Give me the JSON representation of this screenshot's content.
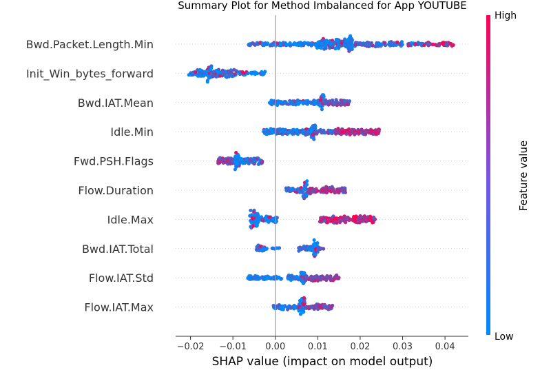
{
  "chart_data": {
    "type": "scatter",
    "title": "Summary Plot for Method Imbalanced for App YOUTUBE",
    "xlabel": "SHAP value (impact on model output)",
    "xlim": [
      -0.0235,
      0.0455
    ],
    "xticks": [
      -0.02,
      -0.01,
      0.0,
      0.01,
      0.02,
      0.03,
      0.04
    ],
    "xtick_labels": [
      "−0.02",
      "−0.01",
      "0.00",
      "0.01",
      "0.02",
      "0.03",
      "0.04"
    ],
    "grid": false,
    "colorbar": {
      "title": "Feature value",
      "high_label": "High",
      "low_label": "Low",
      "low_color": "#008afb",
      "high_color": "#ff0052"
    },
    "features": [
      {
        "name": "Bwd.Packet.Length.Min",
        "groups": [
          {
            "lo": -0.0065,
            "hi": 0.0115,
            "density": 0.5,
            "spread": 0.18,
            "color": 0.1
          },
          {
            "lo": 0.0095,
            "hi": 0.0175,
            "density": 0.85,
            "spread": 0.5,
            "color": 0.1
          },
          {
            "lo": 0.0172,
            "hi": 0.0182,
            "density": 1.0,
            "spread": 0.9,
            "color": 0.0
          },
          {
            "lo": 0.0185,
            "hi": 0.03,
            "density": 0.5,
            "spread": 0.25,
            "color": 0.15
          },
          {
            "lo": 0.031,
            "hi": 0.0355,
            "density": 0.4,
            "spread": 0.2,
            "color": 0.1
          },
          {
            "lo": 0.035,
            "hi": 0.042,
            "density": 0.4,
            "spread": 0.2,
            "color": 0.85
          }
        ]
      },
      {
        "name": "Init_Win_bytes_forward",
        "groups": [
          {
            "lo": -0.0205,
            "hi": -0.016,
            "density": 0.6,
            "spread": 0.35,
            "color": 0.05
          },
          {
            "lo": -0.016,
            "hi": -0.015,
            "density": 1.0,
            "spread": 0.9,
            "color": 0.0
          },
          {
            "lo": -0.015,
            "hi": -0.009,
            "density": 0.6,
            "spread": 0.45,
            "color": 0.2
          },
          {
            "lo": -0.009,
            "hi": -0.002,
            "density": 0.3,
            "spread": 0.2,
            "color": 0.05
          }
        ]
      },
      {
        "name": "Bwd.IAT.Mean",
        "groups": [
          {
            "lo": -0.0015,
            "hi": 0.0105,
            "density": 0.6,
            "spread": 0.25,
            "color": 0.1
          },
          {
            "lo": 0.0105,
            "hi": 0.0115,
            "density": 1.0,
            "spread": 0.85,
            "color": 0.0
          },
          {
            "lo": 0.0115,
            "hi": 0.0175,
            "density": 0.6,
            "spread": 0.3,
            "color": 0.45
          }
        ]
      },
      {
        "name": "Idle.Min",
        "groups": [
          {
            "lo": -0.003,
            "hi": 0.0085,
            "density": 0.8,
            "spread": 0.3,
            "color": 0.1
          },
          {
            "lo": 0.0085,
            "hi": 0.0095,
            "density": 1.0,
            "spread": 0.9,
            "color": 0.0
          },
          {
            "lo": 0.0095,
            "hi": 0.014,
            "density": 0.5,
            "spread": 0.2,
            "color": 0.3
          },
          {
            "lo": 0.014,
            "hi": 0.0245,
            "density": 0.8,
            "spread": 0.3,
            "color": 0.75
          }
        ]
      },
      {
        "name": "Fwd.PSH.Flags",
        "groups": [
          {
            "lo": -0.0135,
            "hi": -0.0095,
            "density": 0.8,
            "spread": 0.35,
            "color": 0.55
          },
          {
            "lo": -0.0095,
            "hi": -0.0085,
            "density": 1.0,
            "spread": 0.9,
            "color": 0.0
          },
          {
            "lo": -0.0085,
            "hi": -0.003,
            "density": 0.8,
            "spread": 0.35,
            "color": 0.2
          }
        ]
      },
      {
        "name": "Flow.Duration",
        "groups": [
          {
            "lo": 0.0025,
            "hi": 0.0065,
            "density": 0.6,
            "spread": 0.35,
            "color": 0.2
          },
          {
            "lo": 0.0065,
            "hi": 0.0075,
            "density": 1.0,
            "spread": 0.9,
            "color": 0.0
          },
          {
            "lo": 0.0075,
            "hi": 0.0165,
            "density": 0.6,
            "spread": 0.35,
            "color": 0.65
          }
        ]
      },
      {
        "name": "Idle.Max",
        "groups": [
          {
            "lo": -0.006,
            "hi": -0.004,
            "density": 1.0,
            "spread": 0.9,
            "color": 0.0
          },
          {
            "lo": -0.004,
            "hi": 0.0005,
            "density": 0.6,
            "spread": 0.35,
            "color": 0.1
          },
          {
            "lo": 0.0105,
            "hi": 0.0235,
            "density": 0.7,
            "spread": 0.35,
            "color": 0.8
          }
        ]
      },
      {
        "name": "Bwd.IAT.Total",
        "groups": [
          {
            "lo": -0.0045,
            "hi": -0.002,
            "density": 0.7,
            "spread": 0.35,
            "color": 0.05
          },
          {
            "lo": -0.001,
            "hi": 0.001,
            "density": 0.2,
            "spread": 0.1,
            "color": 0.05
          },
          {
            "lo": 0.0055,
            "hi": 0.009,
            "density": 0.6,
            "spread": 0.3,
            "color": 0.2
          },
          {
            "lo": 0.009,
            "hi": 0.01,
            "density": 1.0,
            "spread": 0.85,
            "color": 0.0
          },
          {
            "lo": 0.01,
            "hi": 0.0115,
            "density": 0.3,
            "spread": 0.15,
            "color": 0.2
          }
        ]
      },
      {
        "name": "Flow.IAT.Std",
        "groups": [
          {
            "lo": -0.0065,
            "hi": 0.0015,
            "density": 0.6,
            "spread": 0.2,
            "color": 0.05
          },
          {
            "lo": 0.0025,
            "hi": 0.006,
            "density": 0.6,
            "spread": 0.25,
            "color": 0.1
          },
          {
            "lo": 0.006,
            "hi": 0.007,
            "density": 1.0,
            "spread": 0.9,
            "color": 0.0
          },
          {
            "lo": 0.007,
            "hi": 0.015,
            "density": 0.6,
            "spread": 0.3,
            "color": 0.55
          }
        ]
      },
      {
        "name": "Flow.IAT.Max",
        "groups": [
          {
            "lo": -0.0005,
            "hi": 0.0055,
            "density": 0.6,
            "spread": 0.25,
            "color": 0.1
          },
          {
            "lo": 0.0055,
            "hi": 0.007,
            "density": 1.0,
            "spread": 0.95,
            "color": 0.05
          },
          {
            "lo": 0.007,
            "hi": 0.0135,
            "density": 0.6,
            "spread": 0.3,
            "color": 0.5
          }
        ]
      }
    ]
  }
}
